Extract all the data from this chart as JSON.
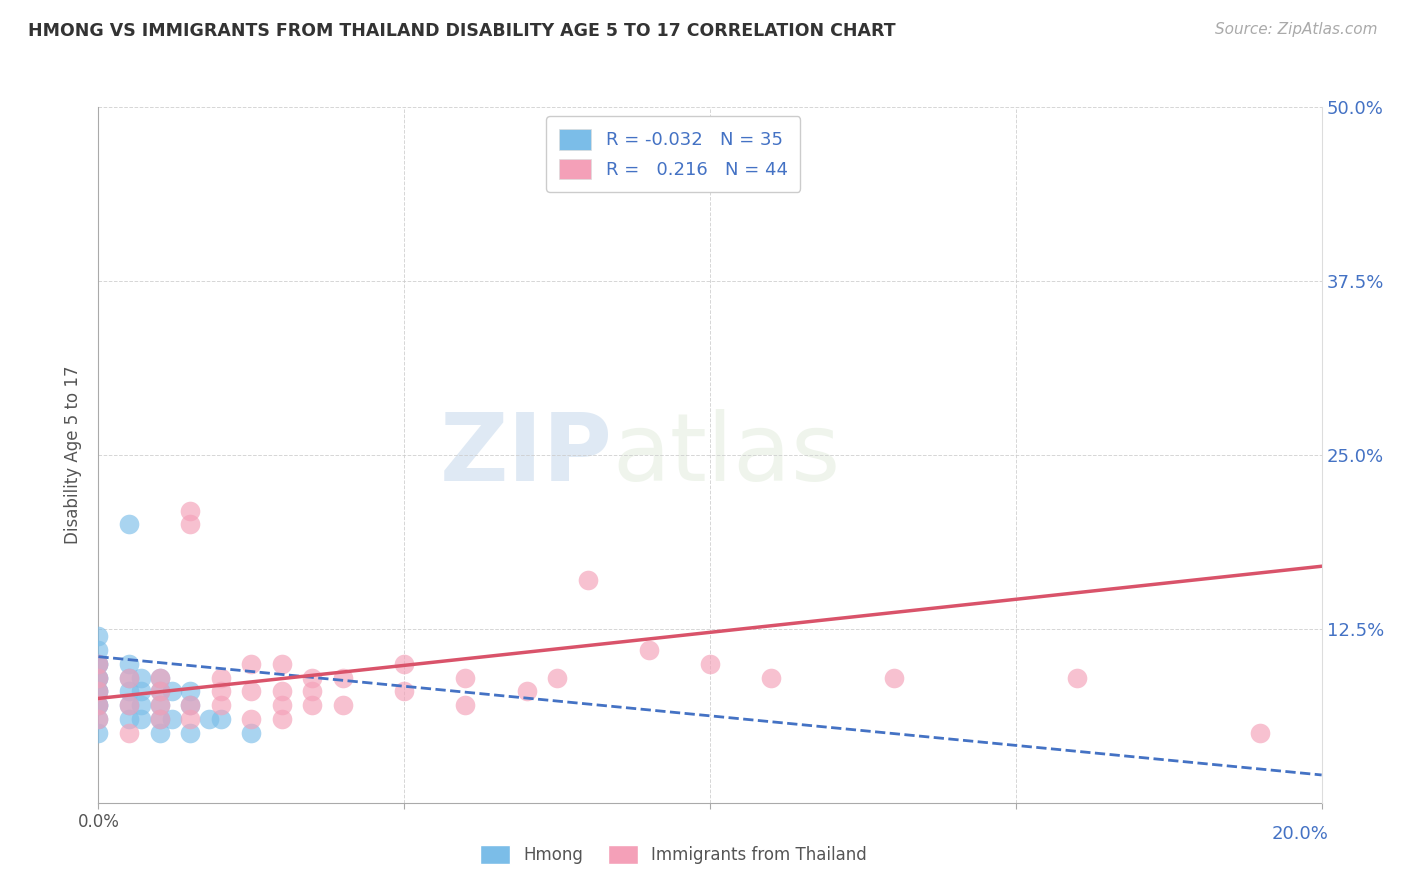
{
  "title": "HMONG VS IMMIGRANTS FROM THAILAND DISABILITY AGE 5 TO 17 CORRELATION CHART",
  "source": "Source: ZipAtlas.com",
  "ylabel": "Disability Age 5 to 17",
  "watermark_zip": "ZIP",
  "watermark_atlas": "atlas",
  "legend_label1": "Hmong",
  "legend_label2": "Immigrants from Thailand",
  "R1": -0.032,
  "N1": 35,
  "R2": 0.216,
  "N2": 44,
  "xlim": [
    0.0,
    0.2
  ],
  "ylim": [
    0.0,
    0.5
  ],
  "xticks": [
    0.0,
    0.05,
    0.1,
    0.15,
    0.2
  ],
  "yticks": [
    0.0,
    0.125,
    0.25,
    0.375,
    0.5
  ],
  "ytick_labels": [
    "",
    "12.5%",
    "25.0%",
    "37.5%",
    "50.0%"
  ],
  "color_hmong": "#7bbde8",
  "color_thailand": "#f4a0b8",
  "line_color_hmong": "#4472c4",
  "line_color_thailand": "#d9536a",
  "background_color": "#ffffff",
  "hmong_x": [
    0.0,
    0.0,
    0.0,
    0.0,
    0.0,
    0.0,
    0.0,
    0.0,
    0.0,
    0.0,
    0.0,
    0.0,
    0.005,
    0.005,
    0.005,
    0.005,
    0.005,
    0.007,
    0.007,
    0.007,
    0.007,
    0.01,
    0.01,
    0.01,
    0.01,
    0.01,
    0.012,
    0.012,
    0.015,
    0.015,
    0.015,
    0.018,
    0.02,
    0.025,
    0.005
  ],
  "hmong_y": [
    0.05,
    0.06,
    0.07,
    0.07,
    0.08,
    0.08,
    0.09,
    0.09,
    0.1,
    0.1,
    0.11,
    0.12,
    0.06,
    0.07,
    0.08,
    0.09,
    0.1,
    0.06,
    0.07,
    0.08,
    0.09,
    0.05,
    0.06,
    0.07,
    0.08,
    0.09,
    0.06,
    0.08,
    0.05,
    0.07,
    0.08,
    0.06,
    0.06,
    0.05,
    0.2
  ],
  "thailand_x": [
    0.0,
    0.0,
    0.0,
    0.0,
    0.0,
    0.005,
    0.005,
    0.005,
    0.01,
    0.01,
    0.01,
    0.01,
    0.015,
    0.015,
    0.015,
    0.015,
    0.02,
    0.02,
    0.02,
    0.025,
    0.025,
    0.025,
    0.03,
    0.03,
    0.03,
    0.03,
    0.035,
    0.035,
    0.035,
    0.04,
    0.04,
    0.05,
    0.05,
    0.06,
    0.06,
    0.07,
    0.075,
    0.08,
    0.09,
    0.1,
    0.11,
    0.13,
    0.16,
    0.19
  ],
  "thailand_y": [
    0.06,
    0.07,
    0.08,
    0.09,
    0.1,
    0.05,
    0.07,
    0.09,
    0.06,
    0.07,
    0.08,
    0.09,
    0.06,
    0.07,
    0.2,
    0.21,
    0.07,
    0.08,
    0.09,
    0.06,
    0.08,
    0.1,
    0.06,
    0.07,
    0.08,
    0.1,
    0.07,
    0.08,
    0.09,
    0.07,
    0.09,
    0.08,
    0.1,
    0.07,
    0.09,
    0.08,
    0.09,
    0.16,
    0.11,
    0.1,
    0.09,
    0.09,
    0.09,
    0.05
  ],
  "hmong_line_x": [
    0.0,
    0.2
  ],
  "hmong_line_y": [
    0.105,
    0.02
  ],
  "thailand_line_x": [
    0.0,
    0.2
  ],
  "thailand_line_y": [
    0.075,
    0.17
  ]
}
